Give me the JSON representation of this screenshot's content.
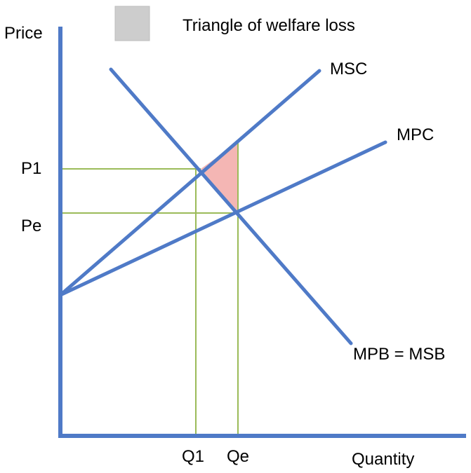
{
  "legend": {
    "label": "Triangle of welfare loss",
    "swatch_color": "#cdcdcd"
  },
  "axes": {
    "y_label": "Price",
    "x_label": "Quantity",
    "color": "#4f7ac7"
  },
  "curves": {
    "msc": "MSC",
    "mpc": "MPC",
    "mpb_msb": "MPB = MSB",
    "color": "#4f7ac7"
  },
  "levels": {
    "p1": "P1",
    "pe": "Pe",
    "q1": "Q1",
    "qe": "Qe",
    "guide_color": "#9bbb59"
  },
  "welfare_loss_triangle": {
    "color": "#f4b6b4"
  }
}
